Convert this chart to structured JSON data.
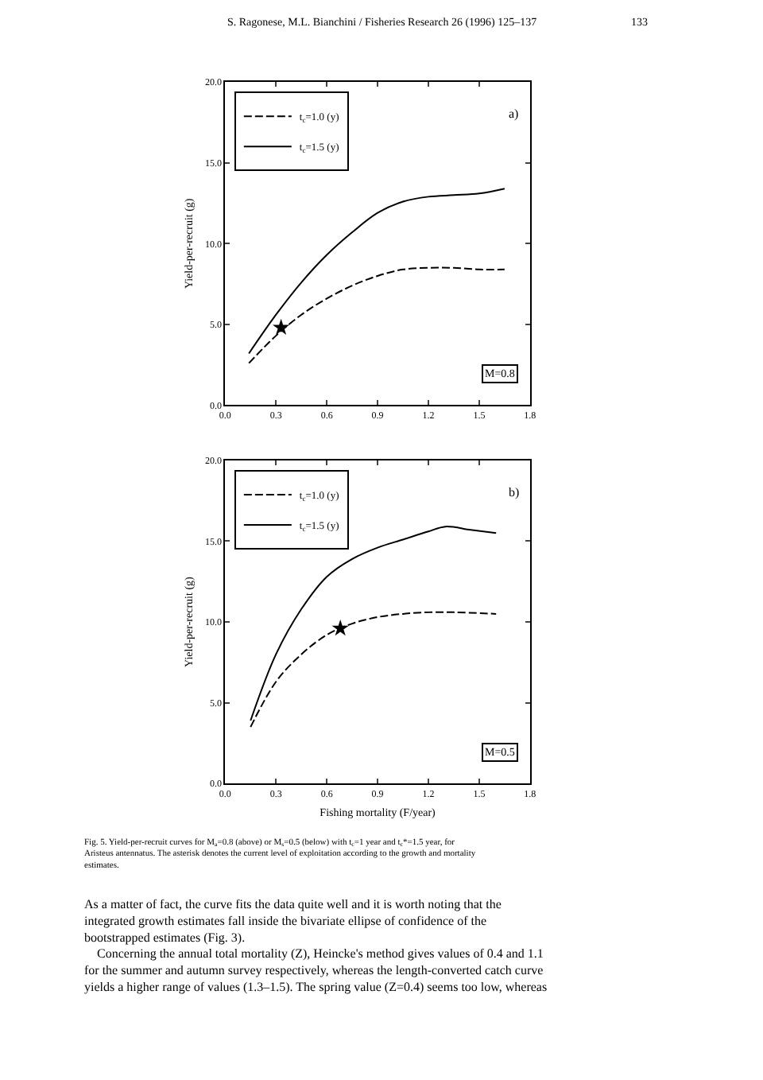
{
  "chart_data": [
    {
      "type": "line",
      "ylabel": "Yield-per-recruit (g)",
      "legend": "top left",
      "marker": "none",
      "xlim": [
        0,
        1.8
      ],
      "xticks": [
        {
          "value": 0,
          "label": "0.0"
        },
        0.3,
        0.6,
        0.9,
        1.2,
        1.5,
        1.8
      ],
      "ylim": [
        0,
        20
      ],
      "yticks": [
        {
          "value": 0,
          "label": "0.0"
        },
        {
          "value": 5,
          "label": "5.0"
        },
        {
          "value": 10,
          "label": "10.0"
        },
        {
          "value": 15,
          "label": "15.0"
        },
        {
          "value": 20,
          "label": "20.0"
        }
      ],
      "series": [
        {
          "name": "t$_{c}$=1.0 (y)",
          "color": "#000000",
          "line_style": "dashed",
          "x": [
            0.14,
            0.3,
            0.45,
            0.6,
            0.75,
            0.9,
            1.05,
            1.2,
            1.35,
            1.5,
            1.65
          ],
          "values": [
            2.6,
            4.3,
            5.6,
            6.6,
            7.4,
            8.0,
            8.4,
            8.5,
            8.5,
            8.4,
            8.4
          ]
        },
        {
          "name": "t$_{c}$=1.5 (y)",
          "color": "#000000",
          "line_style": "solid",
          "x": [
            0.14,
            0.3,
            0.45,
            0.6,
            0.75,
            0.9,
            1.05,
            1.2,
            1.35,
            1.5,
            1.65
          ],
          "values": [
            3.2,
            5.6,
            7.6,
            9.3,
            10.7,
            11.9,
            12.6,
            12.9,
            13.0,
            13.1,
            13.4
          ]
        },
        {
          "type": "scatter",
          "marker": "star",
          "color": "#000000",
          "x": [
            0.33
          ],
          "values": [
            4.8
          ]
        }
      ],
      "annotations": [
        "S. Ragonese, M.L. Bianchini / Fisheries Research 26 (1996) 125–137",
        "133",
        "a)",
        "M=0.8"
      ]
    },
    {
      "type": "line",
      "xlabel": "Fishing mortality (F/year)",
      "ylabel": "Yield-per-recruit (g)",
      "legend": "top left",
      "marker": "none",
      "xlim": [
        0,
        1.8
      ],
      "xticks": [
        {
          "value": 0,
          "label": "0.0"
        },
        0.3,
        0.6,
        0.9,
        1.2,
        1.5,
        1.8
      ],
      "ylim": [
        0,
        20
      ],
      "yticks": [
        {
          "value": 0,
          "label": "0.0"
        },
        {
          "value": 5,
          "label": "5.0"
        },
        {
          "value": 10,
          "label": "10.0"
        },
        {
          "value": 15,
          "label": "15.0"
        },
        {
          "value": 20,
          "label": "20.0"
        }
      ],
      "series": [
        {
          "name": "t$_{c}$=1.0 (y)",
          "color": "#000000",
          "line_style": "dashed",
          "x": [
            0.15,
            0.3,
            0.45,
            0.6,
            0.75,
            0.9,
            1.05,
            1.2,
            1.35,
            1.6
          ],
          "values": [
            3.5,
            6.3,
            8.0,
            9.2,
            9.9,
            10.3,
            10.5,
            10.6,
            10.6,
            10.5
          ]
        },
        {
          "name": "t$_{c}$=1.5 (y)",
          "color": "#000000",
          "line_style": "solid",
          "x": [
            0.15,
            0.3,
            0.45,
            0.6,
            0.75,
            0.9,
            1.05,
            1.2,
            1.3,
            1.45,
            1.6
          ],
          "values": [
            3.9,
            8.0,
            10.8,
            12.8,
            13.9,
            14.6,
            15.1,
            15.6,
            15.9,
            15.7,
            15.5
          ]
        },
        {
          "type": "scatter",
          "marker": "star",
          "color": "#000000",
          "x": [
            0.68
          ],
          "values": [
            9.6
          ]
        }
      ],
      "annotations": [
        "b)",
        "M=0.5",
        "Fig. 5. Yield-per-recruit curves for M$_{a}$=0.8 (above) or M$_{s}$=0.5 (below) with t$_{c}$=1 year and t$_{c}$*=1.5 year, for\nAristeus antennatus. The asterisk denotes the current level of exploitation according to the growth and mortality\nestimates.",
        "As a matter of fact, the curve fits the data quite well and it is worth noting that the\nintegrated growth estimates fall inside the bivariate ellipse of confidence of the\nbootstrapped estimates (Fig. 3).\n    Concerning the annual total mortality (Z), Heincke's method gives values of 0.4 and 1.1\nfor the summer and autumn survey respectively, whereas the length-converted catch curve\nyields a higher range of values (1.3–1.5). The spring value (Z=0.4) seems too low, whereas"
      ]
    }
  ]
}
